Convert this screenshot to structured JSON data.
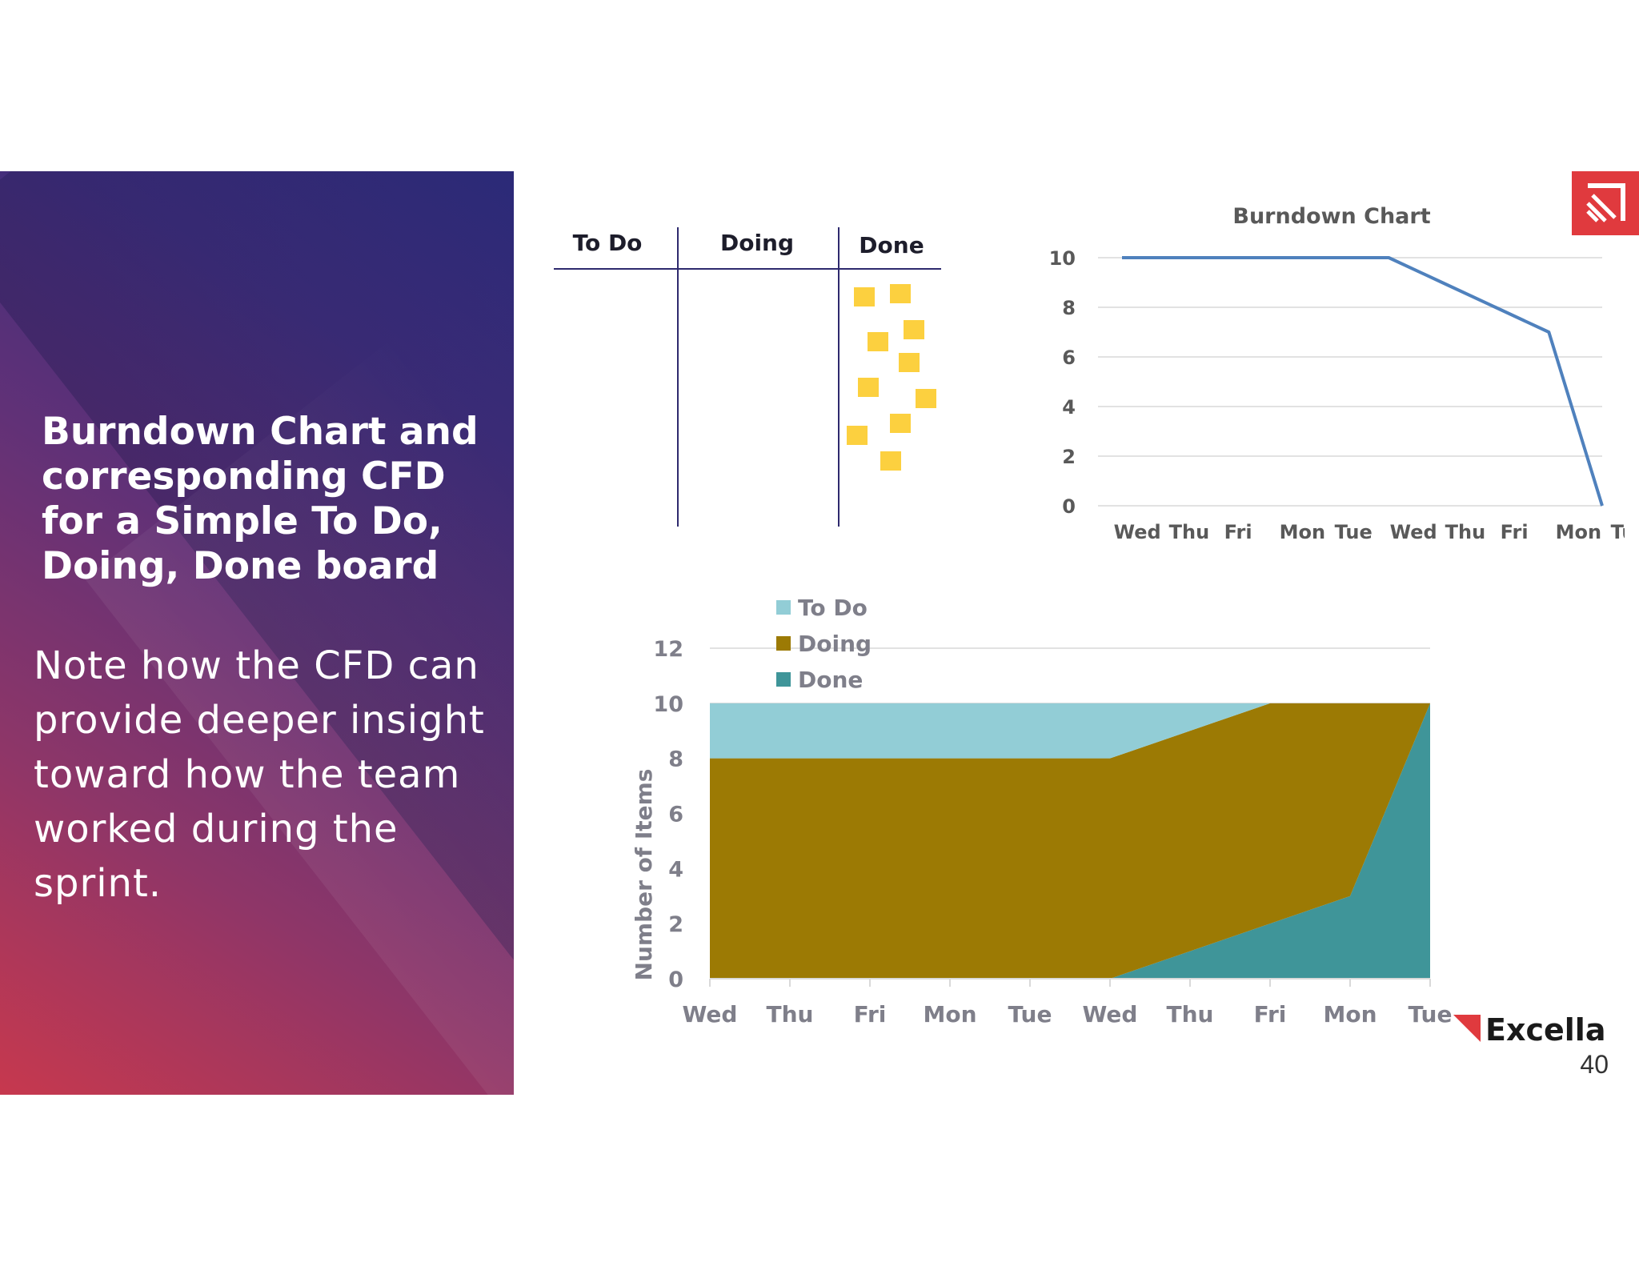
{
  "slide": {
    "title": "Burndown Chart and corresponding CFD for a Simple To Do, Doing, Done board",
    "body": "Note how the CFD can provide deeper insight toward how the team worked during the sprint.",
    "page_number": "40",
    "logo_text": "Excella",
    "colors": {
      "brand_red": "#e03a3e",
      "panel_purple": "#4b2f7a",
      "panel_red": "#c7384e"
    }
  },
  "board": {
    "columns": [
      "To Do",
      "Doing",
      "Done"
    ],
    "done_cards": 10,
    "card_color": "#fcd03f",
    "line_color": "#2e2a6e"
  },
  "chart_data": [
    {
      "type": "line",
      "title": "Burndown Chart",
      "categories": [
        "Wed",
        "Thu",
        "Fri",
        "Mon",
        "Tue",
        "Wed",
        "Thu",
        "Fri",
        "Mon",
        "Tue"
      ],
      "series": [
        {
          "values": [
            10,
            10,
            10,
            10,
            10,
            10,
            9,
            8,
            7,
            0
          ],
          "color": "#4f81bd"
        }
      ],
      "ylim": [
        0,
        10
      ],
      "yticks": [
        0,
        2,
        4,
        6,
        8,
        10
      ],
      "grid": true,
      "legend": "none"
    },
    {
      "type": "area",
      "stacked": true,
      "categories": [
        "Wed",
        "Thu",
        "Fri",
        "Mon",
        "Tue",
        "Wed",
        "Thu",
        "Fri",
        "Mon",
        "Tue"
      ],
      "ylabel": "Number of Items",
      "ylim": [
        0,
        12
      ],
      "yticks": [
        0,
        2,
        4,
        6,
        8,
        10,
        12
      ],
      "grid": true,
      "legend": "top-left",
      "series": [
        {
          "name": "Done",
          "values": [
            0,
            0,
            0,
            0,
            0,
            0,
            1,
            2,
            3,
            10
          ],
          "color": "#3f9599"
        },
        {
          "name": "Doing",
          "values": [
            8,
            8,
            8,
            8,
            8,
            8,
            8,
            8,
            7,
            0
          ],
          "color": "#9c7a04"
        },
        {
          "name": "To Do",
          "values": [
            2,
            2,
            2,
            2,
            2,
            2,
            1,
            0,
            0,
            0
          ],
          "color": "#92cdd6"
        }
      ]
    }
  ]
}
